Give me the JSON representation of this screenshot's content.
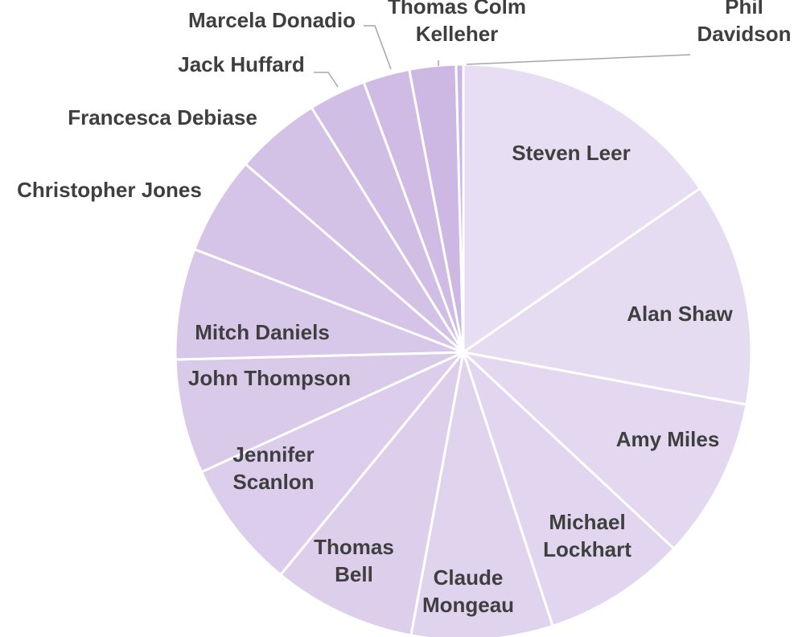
{
  "chart_data": {
    "type": "pie",
    "title": "",
    "slices": [
      {
        "label": "Steven Leer",
        "lines": [
          "Steven Leer"
        ],
        "value": 15.3,
        "color": "#e8def3"
      },
      {
        "label": "Alan Shaw",
        "lines": [
          "Alan Shaw"
        ],
        "value": 12.5,
        "color": "#e6dcf2"
      },
      {
        "label": "Amy Miles",
        "lines": [
          "Amy Miles"
        ],
        "value": 9.0,
        "color": "#e4d8f0"
      },
      {
        "label": "Michael Lockhart",
        "lines": [
          "Michael",
          "Lockhart"
        ],
        "value": 8.0,
        "color": "#e2d5ef"
      },
      {
        "label": "Claude Mongeau",
        "lines": [
          "Claude",
          "Mongeau"
        ],
        "value": 7.9,
        "color": "#e0d3ee"
      },
      {
        "label": "Thomas Bell",
        "lines": [
          "Thomas",
          "Bell"
        ],
        "value": 8.0,
        "color": "#ddcfec"
      },
      {
        "label": "Jennifer Scanlon",
        "lines": [
          "Jennifer",
          "Scanlon"
        ],
        "value": 7.2,
        "color": "#dbcdeb"
      },
      {
        "label": "John Thompson",
        "lines": [
          "John Thompson"
        ],
        "value": 6.4,
        "color": "#d9cae9"
      },
      {
        "label": "Mitch Daniels",
        "lines": [
          "Mitch Daniels"
        ],
        "value": 6.2,
        "color": "#d7c7e8"
      },
      {
        "label": "Christopher Jones",
        "lines": [
          "Christopher Jones"
        ],
        "value": 5.5,
        "color": "#d5c4e7"
      },
      {
        "label": "Francesca Debiase",
        "lines": [
          "Francesca Debiase"
        ],
        "value": 4.8,
        "color": "#d3c1e6"
      },
      {
        "label": "Jack Huffard",
        "lines": [
          "Jack Huffard"
        ],
        "value": 3.2,
        "color": "#d1bee5"
      },
      {
        "label": "Marcela Donadio",
        "lines": [
          "Marcela Donadio"
        ],
        "value": 2.6,
        "color": "#cfbbe4"
      },
      {
        "label": "Thomas Colm Kelleher",
        "lines": [
          "Thomas Colm",
          "Kelleher"
        ],
        "value": 2.6,
        "color": "#cdb8e3"
      },
      {
        "label": "Phil Davidson",
        "lines": [
          "Phil",
          "Davidson"
        ],
        "value": 0.4,
        "color": "#cbb5e2"
      }
    ],
    "legend": "none",
    "label_color": "#3f3f3f",
    "separator_color": "#ffffff"
  }
}
